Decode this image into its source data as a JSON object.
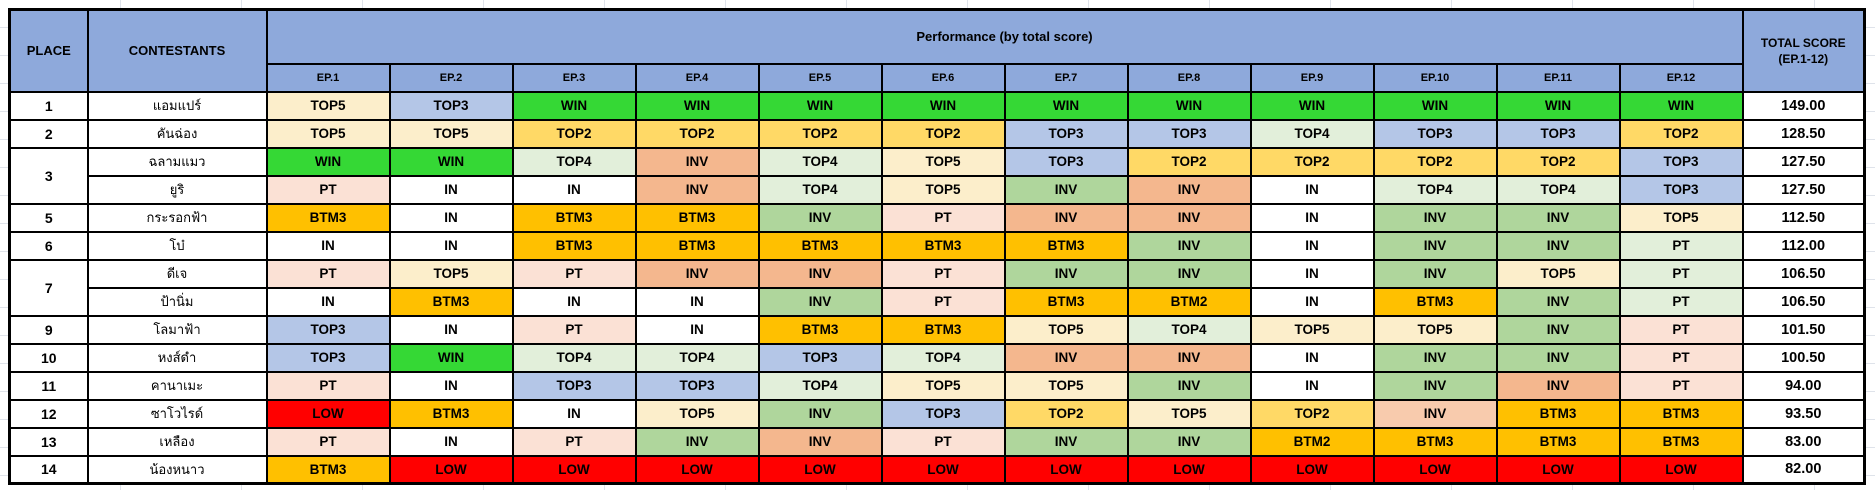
{
  "window": {
    "background": "#FFFFFF",
    "gridline_color": "#DFE3EA"
  },
  "table": {
    "header": {
      "place": "PLACE",
      "contestants": "CONTESTANTS",
      "performance": "Performance (by total score)",
      "total_score_line1": "TOTAL SCORE",
      "total_score_line2": "(EP.1-12)",
      "header_bg": "#8EA9DB"
    },
    "episodes": [
      "EP.1",
      "EP.2",
      "EP.3",
      "EP.4",
      "EP.5",
      "EP.6",
      "EP.7",
      "EP.8",
      "EP.9",
      "EP.10",
      "EP.11",
      "EP.12"
    ],
    "result_styles": {
      "win": "#35D835",
      "top2": "#FFD966",
      "top3": "#B4C6E7",
      "top4": "#E2EFDA",
      "top5": "#FCEECB",
      "btm": "#FFC000",
      "low": "#FF0000",
      "in": "#FFFFFF",
      "pt_p": "#FBE1D5",
      "pt_g": "#E2EFDA",
      "inv_g": "#AFD69C",
      "inv_s": "#F4B78E",
      "inv_sl": "#F8CBAD"
    },
    "rows": [
      {
        "place": "1",
        "span": 1,
        "name": "แอมแปร์",
        "total": "149.00",
        "cells": [
          [
            "TOP5",
            "top5"
          ],
          [
            "TOP3",
            "top3"
          ],
          [
            "WIN",
            "win"
          ],
          [
            "WIN",
            "win"
          ],
          [
            "WIN",
            "win"
          ],
          [
            "WIN",
            "win"
          ],
          [
            "WIN",
            "win"
          ],
          [
            "WIN",
            "win"
          ],
          [
            "WIN",
            "win"
          ],
          [
            "WIN",
            "win"
          ],
          [
            "WIN",
            "win"
          ],
          [
            "WIN",
            "win"
          ]
        ]
      },
      {
        "place": "2",
        "span": 1,
        "name": "คันฉ่อง",
        "total": "128.50",
        "cells": [
          [
            "TOP5",
            "top5"
          ],
          [
            "TOP5",
            "top5"
          ],
          [
            "TOP2",
            "top2"
          ],
          [
            "TOP2",
            "top2"
          ],
          [
            "TOP2",
            "top2"
          ],
          [
            "TOP2",
            "top2"
          ],
          [
            "TOP3",
            "top3"
          ],
          [
            "TOP3",
            "top3"
          ],
          [
            "TOP4",
            "top4"
          ],
          [
            "TOP3",
            "top3"
          ],
          [
            "TOP3",
            "top3"
          ],
          [
            "TOP2",
            "top2"
          ]
        ]
      },
      {
        "place": "3",
        "span": 2,
        "name": "ฉลามแมว",
        "total": "127.50",
        "cells": [
          [
            "WIN",
            "win"
          ],
          [
            "WIN",
            "win"
          ],
          [
            "TOP4",
            "top4"
          ],
          [
            "INV",
            "inv_s"
          ],
          [
            "TOP4",
            "top4"
          ],
          [
            "TOP5",
            "top5"
          ],
          [
            "TOP3",
            "top3"
          ],
          [
            "TOP2",
            "top2"
          ],
          [
            "TOP2",
            "top2"
          ],
          [
            "TOP2",
            "top2"
          ],
          [
            "TOP2",
            "top2"
          ],
          [
            "TOP3",
            "top3"
          ]
        ]
      },
      {
        "place": null,
        "span": 0,
        "name": "ยูริ",
        "total": "127.50",
        "cells": [
          [
            "PT",
            "pt_p"
          ],
          [
            "IN",
            "in"
          ],
          [
            "IN",
            "in"
          ],
          [
            "INV",
            "inv_s"
          ],
          [
            "TOP4",
            "top4"
          ],
          [
            "TOP5",
            "top5"
          ],
          [
            "INV",
            "inv_g"
          ],
          [
            "INV",
            "inv_s"
          ],
          [
            "IN",
            "in"
          ],
          [
            "TOP4",
            "top4"
          ],
          [
            "TOP4",
            "top4"
          ],
          [
            "TOP3",
            "top3"
          ]
        ]
      },
      {
        "place": "5",
        "span": 1,
        "name": "กระรอกฟ้า",
        "total": "112.50",
        "cells": [
          [
            "BTM3",
            "btm"
          ],
          [
            "IN",
            "in"
          ],
          [
            "BTM3",
            "btm"
          ],
          [
            "BTM3",
            "btm"
          ],
          [
            "INV",
            "inv_g"
          ],
          [
            "PT",
            "pt_p"
          ],
          [
            "INV",
            "inv_s"
          ],
          [
            "INV",
            "inv_s"
          ],
          [
            "IN",
            "in"
          ],
          [
            "INV",
            "inv_g"
          ],
          [
            "INV",
            "inv_g"
          ],
          [
            "TOP5",
            "top5"
          ]
        ]
      },
      {
        "place": "6",
        "span": 1,
        "name": "โบ๋",
        "total": "112.00",
        "cells": [
          [
            "IN",
            "in"
          ],
          [
            "IN",
            "in"
          ],
          [
            "BTM3",
            "btm"
          ],
          [
            "BTM3",
            "btm"
          ],
          [
            "BTM3",
            "btm"
          ],
          [
            "BTM3",
            "btm"
          ],
          [
            "BTM3",
            "btm"
          ],
          [
            "INV",
            "inv_g"
          ],
          [
            "IN",
            "in"
          ],
          [
            "INV",
            "inv_g"
          ],
          [
            "INV",
            "inv_g"
          ],
          [
            "PT",
            "pt_g"
          ]
        ]
      },
      {
        "place": "7",
        "span": 2,
        "name": "ดีเจ",
        "total": "106.50",
        "cells": [
          [
            "PT",
            "pt_p"
          ],
          [
            "TOP5",
            "top5"
          ],
          [
            "PT",
            "pt_p"
          ],
          [
            "INV",
            "inv_s"
          ],
          [
            "INV",
            "inv_s"
          ],
          [
            "PT",
            "pt_p"
          ],
          [
            "INV",
            "inv_g"
          ],
          [
            "INV",
            "inv_g"
          ],
          [
            "IN",
            "in"
          ],
          [
            "INV",
            "inv_g"
          ],
          [
            "TOP5",
            "top5"
          ],
          [
            "PT",
            "pt_g"
          ]
        ]
      },
      {
        "place": null,
        "span": 0,
        "name": "ป้านิ่ม",
        "total": "106.50",
        "cells": [
          [
            "IN",
            "in"
          ],
          [
            "BTM3",
            "btm"
          ],
          [
            "IN",
            "in"
          ],
          [
            "IN",
            "in"
          ],
          [
            "INV",
            "inv_g"
          ],
          [
            "PT",
            "pt_p"
          ],
          [
            "BTM3",
            "btm"
          ],
          [
            "BTM2",
            "btm"
          ],
          [
            "IN",
            "in"
          ],
          [
            "BTM3",
            "btm"
          ],
          [
            "INV",
            "inv_g"
          ],
          [
            "PT",
            "pt_g"
          ]
        ]
      },
      {
        "place": "9",
        "span": 1,
        "name": "โลมาฟ้า",
        "total": "101.50",
        "cells": [
          [
            "TOP3",
            "top3"
          ],
          [
            "IN",
            "in"
          ],
          [
            "PT",
            "pt_p"
          ],
          [
            "IN",
            "in"
          ],
          [
            "BTM3",
            "btm"
          ],
          [
            "BTM3",
            "btm"
          ],
          [
            "TOP5",
            "top5"
          ],
          [
            "TOP4",
            "top4"
          ],
          [
            "TOP5",
            "top5"
          ],
          [
            "TOP5",
            "top5"
          ],
          [
            "INV",
            "inv_g"
          ],
          [
            "PT",
            "pt_p"
          ]
        ]
      },
      {
        "place": "10",
        "span": 1,
        "name": "หงส์ดำ",
        "total": "100.50",
        "cells": [
          [
            "TOP3",
            "top3"
          ],
          [
            "WIN",
            "win"
          ],
          [
            "TOP4",
            "top4"
          ],
          [
            "TOP4",
            "top4"
          ],
          [
            "TOP3",
            "top3"
          ],
          [
            "TOP4",
            "top4"
          ],
          [
            "INV",
            "inv_s"
          ],
          [
            "INV",
            "inv_s"
          ],
          [
            "IN",
            "in"
          ],
          [
            "INV",
            "inv_g"
          ],
          [
            "INV",
            "inv_g"
          ],
          [
            "PT",
            "pt_p"
          ]
        ]
      },
      {
        "place": "11",
        "span": 1,
        "name": "คานาเมะ",
        "total": "94.00",
        "cells": [
          [
            "PT",
            "pt_p"
          ],
          [
            "IN",
            "in"
          ],
          [
            "TOP3",
            "top3"
          ],
          [
            "TOP3",
            "top3"
          ],
          [
            "TOP4",
            "top4"
          ],
          [
            "TOP5",
            "top5"
          ],
          [
            "TOP5",
            "top5"
          ],
          [
            "INV",
            "inv_g"
          ],
          [
            "IN",
            "in"
          ],
          [
            "INV",
            "inv_g"
          ],
          [
            "INV",
            "inv_s"
          ],
          [
            "PT",
            "pt_p"
          ]
        ]
      },
      {
        "place": "12",
        "span": 1,
        "name": "ซาโวไรด์",
        "total": "93.50",
        "cells": [
          [
            "LOW",
            "low"
          ],
          [
            "BTM3",
            "btm"
          ],
          [
            "IN",
            "in"
          ],
          [
            "TOP5",
            "top5"
          ],
          [
            "INV",
            "inv_g"
          ],
          [
            "TOP3",
            "top3"
          ],
          [
            "TOP2",
            "top2"
          ],
          [
            "TOP5",
            "top5"
          ],
          [
            "TOP2",
            "top2"
          ],
          [
            "INV",
            "inv_sl"
          ],
          [
            "BTM3",
            "btm"
          ],
          [
            "BTM3",
            "btm"
          ]
        ]
      },
      {
        "place": "13",
        "span": 1,
        "name": "เหลือง",
        "total": "83.00",
        "cells": [
          [
            "PT",
            "pt_p"
          ],
          [
            "IN",
            "in"
          ],
          [
            "PT",
            "pt_p"
          ],
          [
            "INV",
            "inv_g"
          ],
          [
            "INV",
            "inv_s"
          ],
          [
            "PT",
            "pt_p"
          ],
          [
            "INV",
            "inv_g"
          ],
          [
            "INV",
            "inv_g"
          ],
          [
            "BTM2",
            "btm"
          ],
          [
            "BTM3",
            "btm"
          ],
          [
            "BTM3",
            "btm"
          ],
          [
            "BTM3",
            "btm"
          ]
        ]
      },
      {
        "place": "14",
        "span": 1,
        "name": "น้องหนาว",
        "total": "82.00",
        "cells": [
          [
            "BTM3",
            "btm"
          ],
          [
            "LOW",
            "low"
          ],
          [
            "LOW",
            "low"
          ],
          [
            "LOW",
            "low"
          ],
          [
            "LOW",
            "low"
          ],
          [
            "LOW",
            "low"
          ],
          [
            "LOW",
            "low"
          ],
          [
            "LOW",
            "low"
          ],
          [
            "LOW",
            "low"
          ],
          [
            "LOW",
            "low"
          ],
          [
            "LOW",
            "low"
          ],
          [
            "LOW",
            "low"
          ]
        ]
      }
    ]
  }
}
